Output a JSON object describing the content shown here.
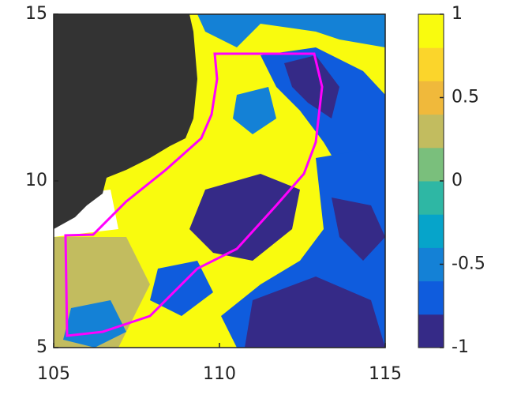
{
  "chart_data": {
    "type": "heatmap",
    "xlim": [
      105,
      115
    ],
    "xticks": [
      105,
      110,
      115
    ],
    "ylim": [
      5,
      15
    ],
    "yticks": [
      5,
      10,
      15
    ],
    "colorbar": {
      "lim": [
        -1,
        1
      ],
      "ticks": [
        -1,
        -0.5,
        0,
        0.5,
        1
      ],
      "colors": [
        "#352a87",
        "#0f5cdd",
        "#1481d6",
        "#06a4ca",
        "#2eb7a4",
        "#7abf7c",
        "#c2bc5f",
        "#f0b93b",
        "#fbd52b",
        "#f9fb0e"
      ]
    }
  }
}
